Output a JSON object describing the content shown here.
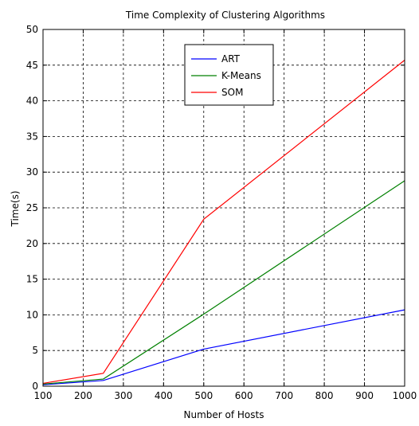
{
  "chart_data": {
    "type": "line",
    "title": "Time Complexity of Clustering Algorithms",
    "xlabel": "Number of Hosts",
    "ylabel": "Time(s)",
    "xlim": [
      100,
      1000
    ],
    "ylim": [
      0,
      50
    ],
    "xticks": [
      100,
      200,
      300,
      400,
      500,
      600,
      700,
      800,
      900,
      1000
    ],
    "yticks": [
      0,
      5,
      10,
      15,
      20,
      25,
      30,
      35,
      40,
      45,
      50
    ],
    "grid": true,
    "legend_position": "top-center",
    "x": [
      100,
      250,
      500,
      1000
    ],
    "series": [
      {
        "name": "ART",
        "color": "#0000ff",
        "values": [
          0.2,
          0.8,
          5.2,
          10.7
        ]
      },
      {
        "name": "K-Means",
        "color": "#008000",
        "values": [
          0.3,
          1.0,
          10.1,
          28.8
        ]
      },
      {
        "name": "SOM",
        "color": "#ff0000",
        "values": [
          0.4,
          1.8,
          23.4,
          45.7
        ]
      }
    ]
  }
}
